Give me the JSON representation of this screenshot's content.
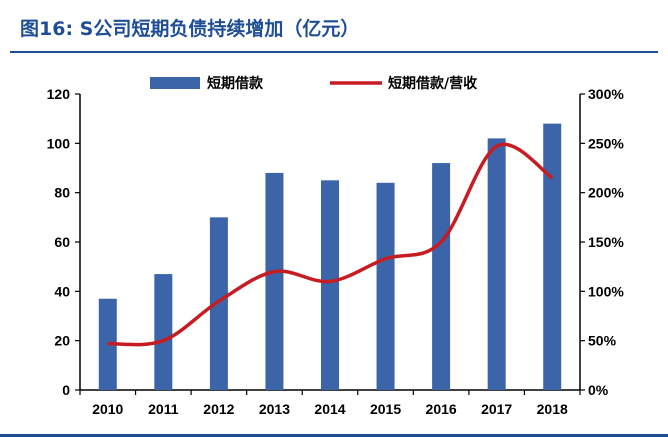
{
  "title": "图16: S公司短期负债持续增加（亿元）",
  "chart_data": {
    "type": "bar",
    "categories": [
      "2010",
      "2011",
      "2012",
      "2013",
      "2014",
      "2015",
      "2016",
      "2017",
      "2018"
    ],
    "series": [
      {
        "name": "短期借款",
        "type": "bar",
        "axis": "left",
        "values": [
          37,
          47,
          70,
          88,
          85,
          84,
          92,
          102,
          108
        ]
      },
      {
        "name": "短期借款/营收",
        "type": "line",
        "axis": "right",
        "values": [
          47,
          50,
          90,
          120,
          110,
          133,
          150,
          247,
          215
        ]
      }
    ],
    "ylim_left": [
      0,
      120
    ],
    "ylim_right": [
      0,
      300
    ],
    "y_ticks_left": [
      "0",
      "20",
      "40",
      "60",
      "80",
      "100",
      "120"
    ],
    "y_ticks_right": [
      "0%",
      "50%",
      "100%",
      "150%",
      "200%",
      "250%",
      "300%"
    ],
    "grid": false,
    "legend_position": "top",
    "colors": {
      "bar": "#3c64a8",
      "line": "#c71c22",
      "title": "#1f4e96"
    }
  }
}
